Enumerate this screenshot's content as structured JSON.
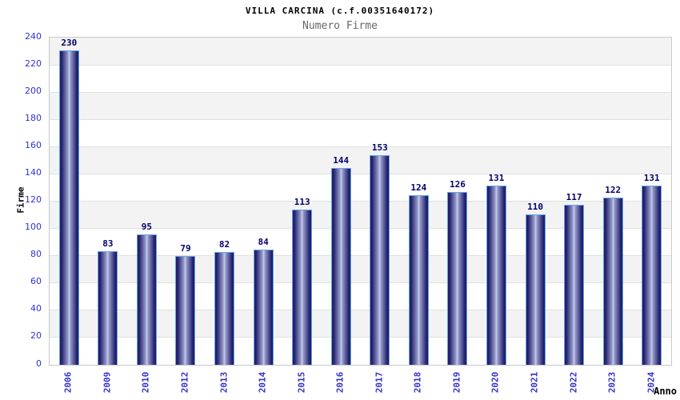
{
  "chart_data": {
    "type": "bar",
    "title": "VILLA CARCINA (c.f.00351640172)",
    "subtitle": "Numero Firme",
    "xlabel": "Anno",
    "ylabel": "Firme",
    "categories": [
      "2006",
      "2009",
      "2010",
      "2012",
      "2013",
      "2014",
      "2015",
      "2016",
      "2017",
      "2018",
      "2019",
      "2020",
      "2021",
      "2022",
      "2023",
      "2024"
    ],
    "values": [
      230,
      83,
      95,
      79,
      82,
      84,
      113,
      144,
      153,
      124,
      126,
      131,
      110,
      117,
      122,
      131
    ],
    "ylim": [
      0,
      240
    ],
    "ytick_step": 20,
    "grid": true,
    "legend_position": "none",
    "bands_alternating": true
  },
  "colors": {
    "bar_edge_dark": "#1c1c66",
    "bar_center_light": "#c6cae8",
    "bar_border": "#64a3f0",
    "value_label": "#00006b",
    "axis_tick_label": "#3232cd",
    "band_gray": "#f3f3f3",
    "grid_line": "#e0e0e0",
    "plot_border": "#c9c9c9",
    "title": "#000000",
    "subtitle": "#666666"
  }
}
